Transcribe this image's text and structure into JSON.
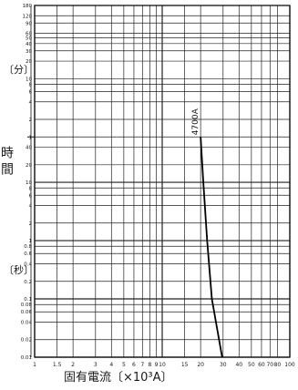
{
  "chart_data": {
    "type": "line",
    "title": "",
    "xlabel": "固有電流〔×10³A〕",
    "ylabel": "時間",
    "y_units_upper": "〔分〕",
    "y_units_lower": "〔秒〕",
    "x_scale": "log",
    "y_scale": "log",
    "xlim": [
      1,
      100
    ],
    "ylim_seconds": [
      0.01,
      10800
    ],
    "grid": true,
    "x_ticks": [
      "1",
      "1.5",
      "2",
      "3",
      "4",
      "5",
      "6",
      "7",
      "8",
      "9",
      "10",
      "15",
      "20",
      "30",
      "40",
      "50",
      "60",
      "70",
      "80",
      "100"
    ],
    "y_ticks_minutes": [
      "180",
      "120",
      "90",
      "60",
      "50",
      "40",
      "30",
      "20",
      "10",
      "8",
      "6",
      "4",
      "2",
      "1"
    ],
    "y_ticks_seconds": [
      "40",
      "20",
      "10",
      "8",
      "6",
      "4",
      "2",
      "1",
      "0.8",
      "0.6",
      "0.4",
      "0.2",
      "0.1",
      "0.08",
      "0.06",
      "0.04",
      "0.02",
      "0.01"
    ],
    "series": [
      {
        "name": "4700A",
        "x": [
          20.0,
          21.0,
          22.5,
          24.5,
          27.0,
          29.5
        ],
        "y_seconds": [
          60,
          10,
          1,
          0.1,
          0.03,
          0.01
        ]
      }
    ]
  }
}
